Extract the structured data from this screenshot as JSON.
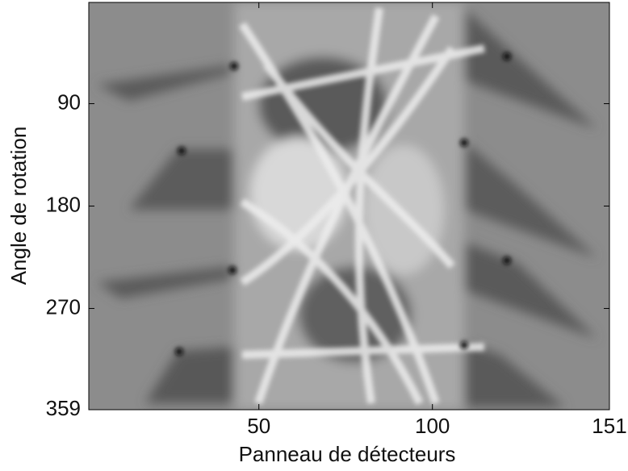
{
  "chart_data": {
    "type": "image",
    "xlabel": "Panneau de détecteurs",
    "ylabel": "Angle de rotation",
    "xlim": [
      1,
      151
    ],
    "xticks": [
      50,
      100,
      151
    ],
    "ylim": [
      1,
      359
    ],
    "yticks": [
      90,
      180,
      270,
      359
    ],
    "y_reversed": true
  }
}
